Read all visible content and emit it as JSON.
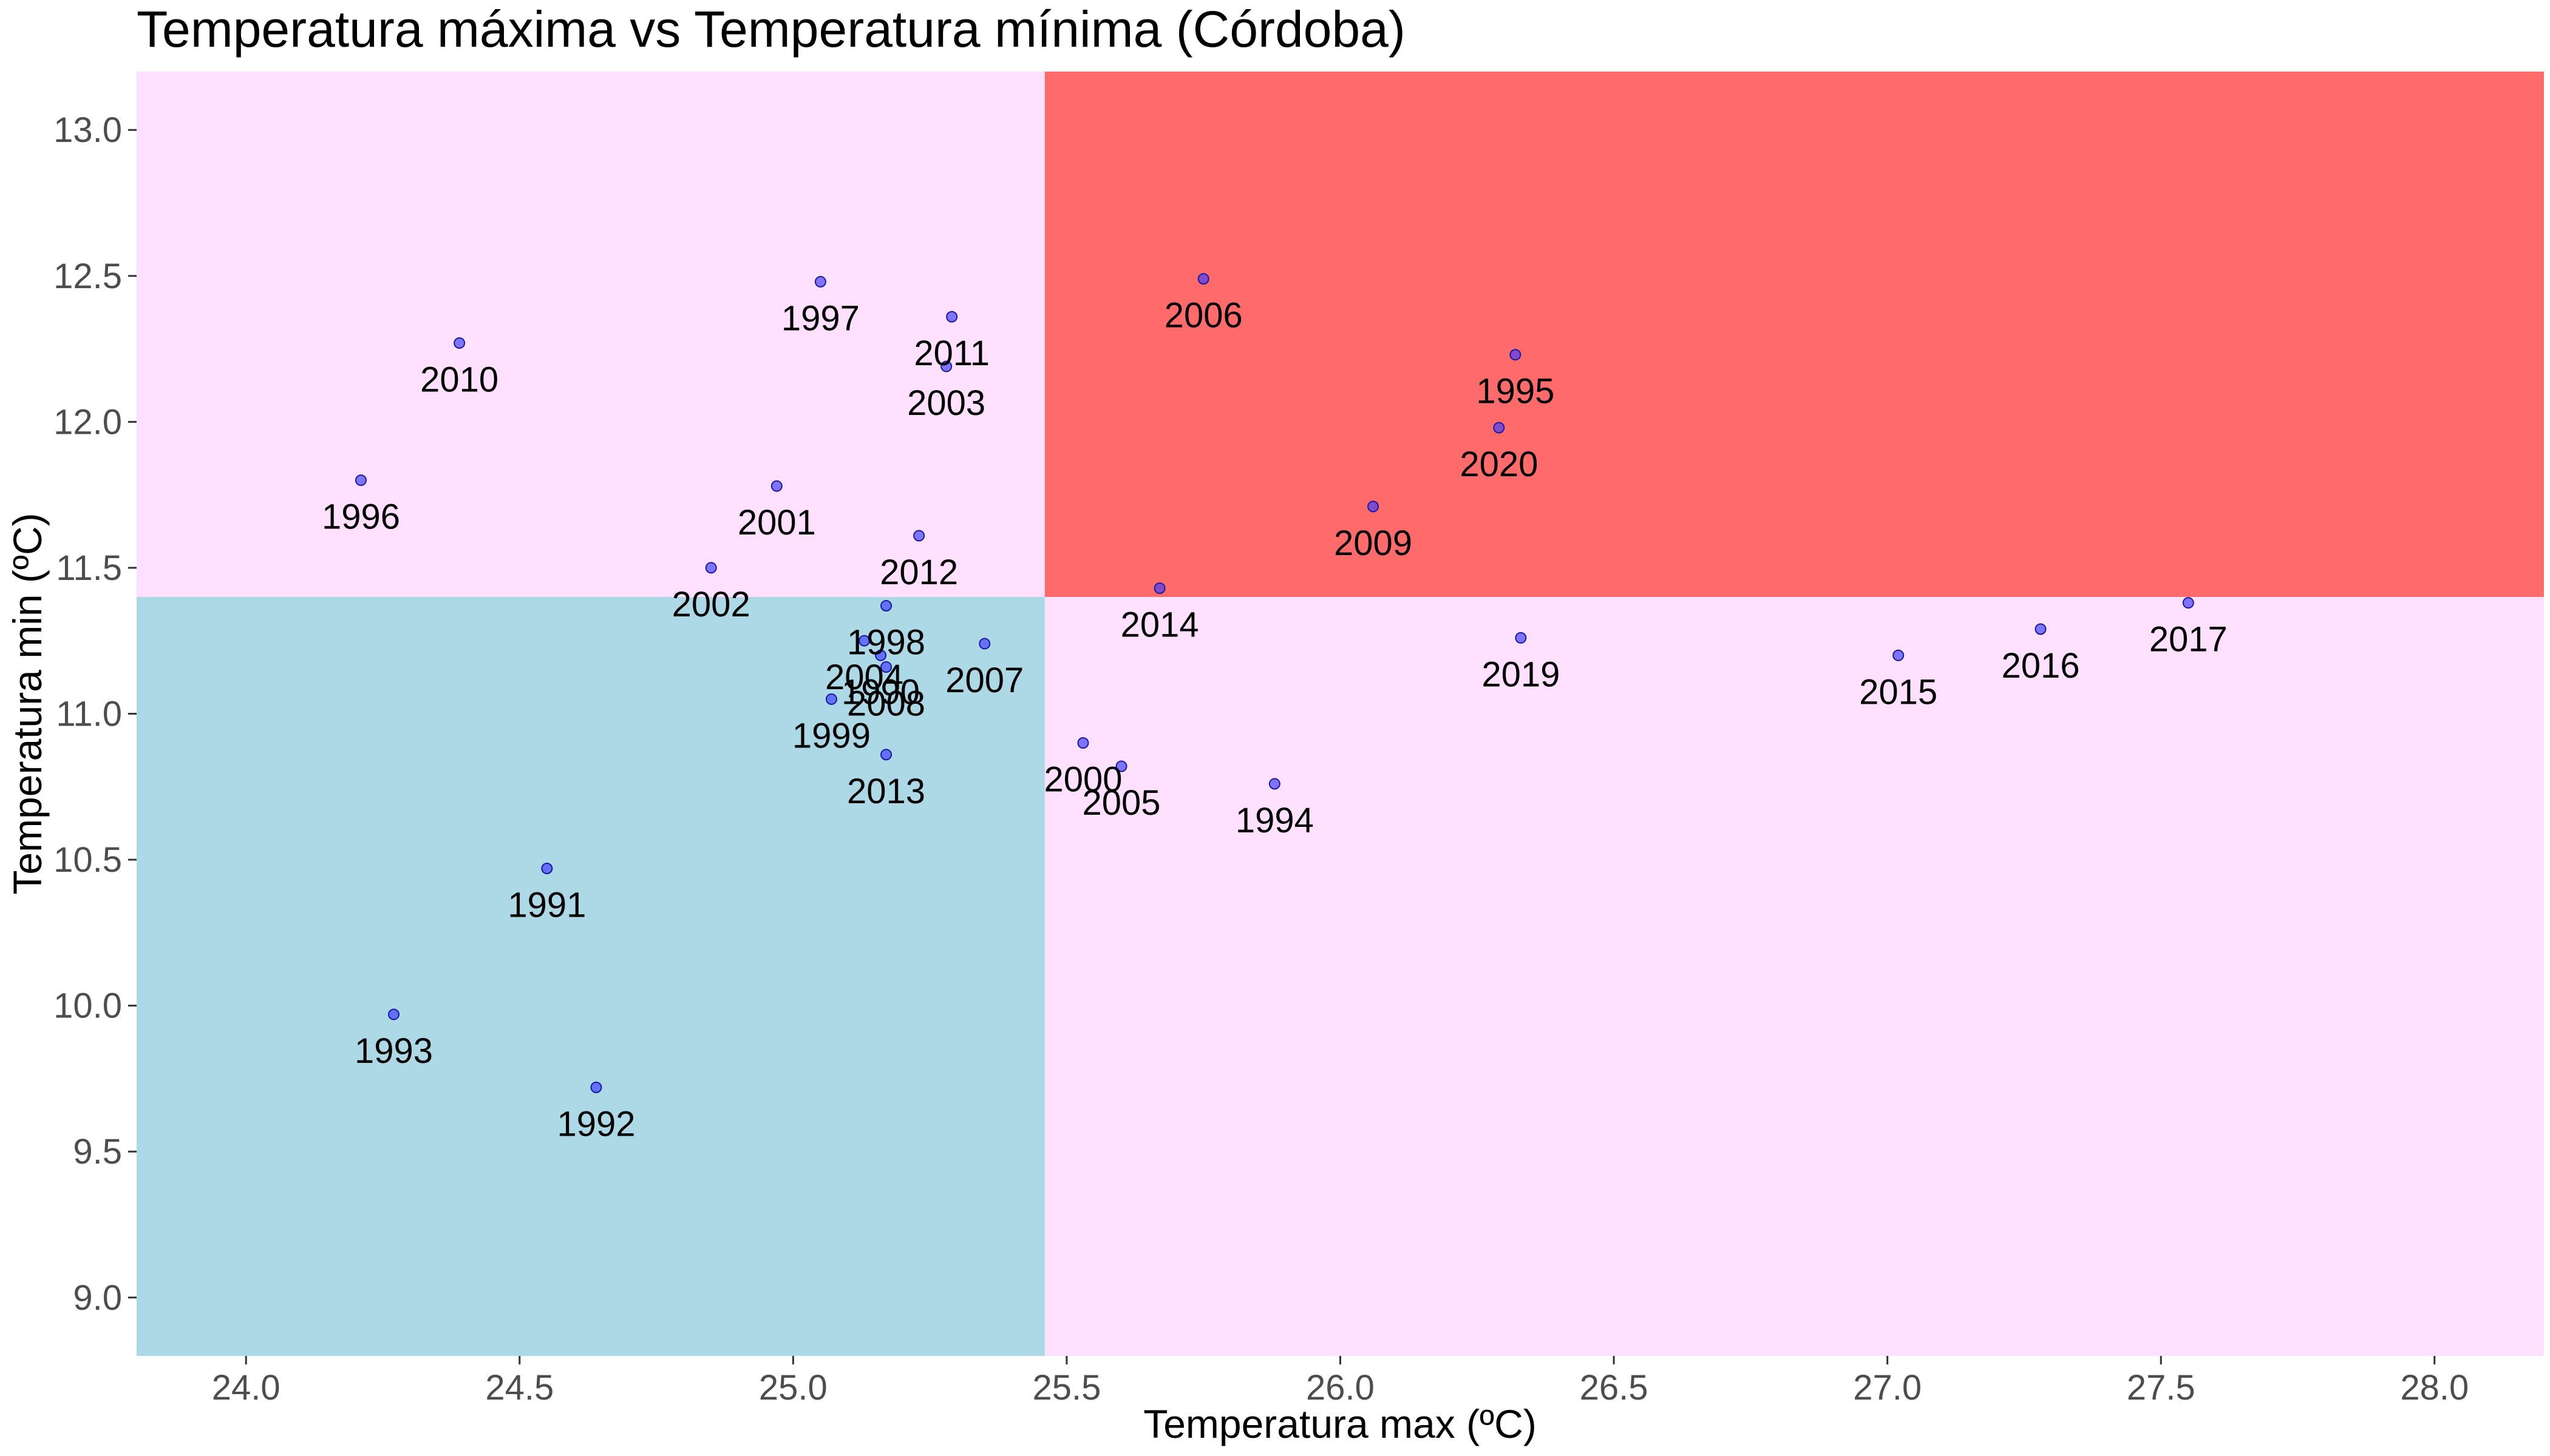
{
  "chart_data": {
    "type": "scatter",
    "title": "Temperatura máxima vs Temperatura mínima (Córdoba)",
    "xlabel": "Temperatura max (ºC)",
    "ylabel": "Temperatura min (ºC)",
    "xlim": [
      23.8,
      28.2
    ],
    "ylim": [
      8.8,
      13.2
    ],
    "x_ticks": [
      "24.0",
      "24.5",
      "25.0",
      "25.5",
      "26.0",
      "26.5",
      "27.0",
      "27.5",
      "28.0"
    ],
    "y_ticks": [
      "9.0",
      "9.5",
      "10.0",
      "10.5",
      "11.0",
      "11.5",
      "12.0",
      "12.5",
      "13.0"
    ],
    "grid": false,
    "point_color": "#3b3bff",
    "quadrants": {
      "x_split": 25.46,
      "y_split": 11.4,
      "colors": {
        "top_left": "#ffe0ff",
        "top_right": "#ff6b6b",
        "bottom_left": "#add8e6",
        "bottom_right": "#ffe0ff"
      }
    },
    "points": [
      {
        "label": "1990",
        "x": 25.16,
        "y": 11.2
      },
      {
        "label": "1991",
        "x": 24.55,
        "y": 10.47
      },
      {
        "label": "1992",
        "x": 24.64,
        "y": 9.72
      },
      {
        "label": "1993",
        "x": 24.27,
        "y": 9.97
      },
      {
        "label": "1994",
        "x": 25.88,
        "y": 10.76
      },
      {
        "label": "1995",
        "x": 26.32,
        "y": 12.23
      },
      {
        "label": "1996",
        "x": 24.21,
        "y": 11.8
      },
      {
        "label": "1997",
        "x": 25.05,
        "y": 12.48
      },
      {
        "label": "1998",
        "x": 25.17,
        "y": 11.37
      },
      {
        "label": "1999",
        "x": 25.07,
        "y": 11.05
      },
      {
        "label": "2000",
        "x": 25.53,
        "y": 10.9
      },
      {
        "label": "2001",
        "x": 24.97,
        "y": 11.78
      },
      {
        "label": "2002",
        "x": 24.85,
        "y": 11.5
      },
      {
        "label": "2003",
        "x": 25.28,
        "y": 12.19
      },
      {
        "label": "2004",
        "x": 25.13,
        "y": 11.25
      },
      {
        "label": "2005",
        "x": 25.6,
        "y": 10.82
      },
      {
        "label": "2006",
        "x": 25.75,
        "y": 12.49
      },
      {
        "label": "2007",
        "x": 25.35,
        "y": 11.24
      },
      {
        "label": "2008",
        "x": 25.17,
        "y": 11.16
      },
      {
        "label": "2009",
        "x": 26.06,
        "y": 11.71
      },
      {
        "label": "2010",
        "x": 24.39,
        "y": 12.27
      },
      {
        "label": "2011",
        "x": 25.29,
        "y": 12.36
      },
      {
        "label": "2012",
        "x": 25.23,
        "y": 11.61
      },
      {
        "label": "2013",
        "x": 25.17,
        "y": 10.86
      },
      {
        "label": "2014",
        "x": 25.67,
        "y": 11.43
      },
      {
        "label": "2015",
        "x": 27.02,
        "y": 11.2
      },
      {
        "label": "2016",
        "x": 27.28,
        "y": 11.29
      },
      {
        "label": "2017",
        "x": 27.55,
        "y": 11.38
      },
      {
        "label": "2019",
        "x": 26.33,
        "y": 11.26
      },
      {
        "label": "2020",
        "x": 26.29,
        "y": 11.98
      }
    ]
  }
}
